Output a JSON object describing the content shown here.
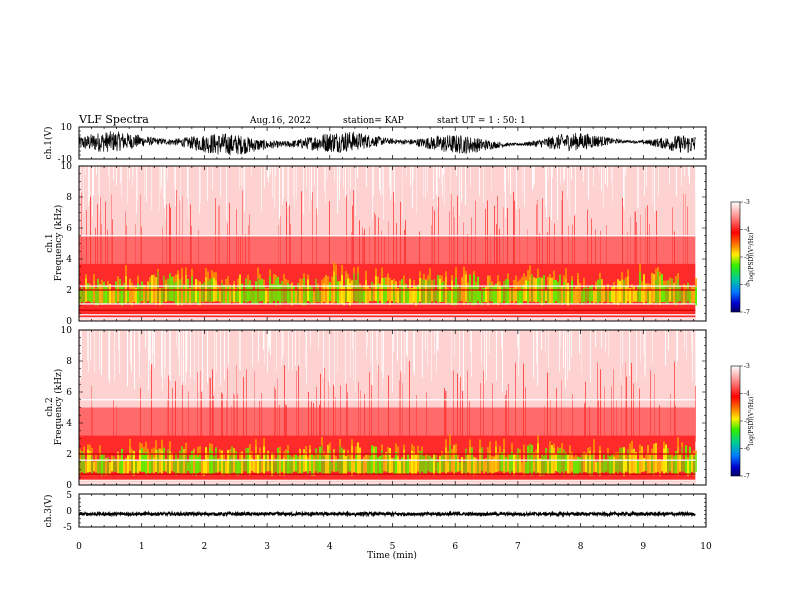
{
  "header": {
    "title": "VLF Spectra",
    "date": "Aug.16, 2022",
    "station": "station= KAP",
    "start_time": "start  UT =   1 : 50: 1"
  },
  "chart_data": [
    {
      "type": "line",
      "panel": "ch1-waveform",
      "ylabel": "ch.1(V)",
      "ylim": [
        -10,
        10
      ],
      "ytick_labels": [
        "10",
        "-10"
      ],
      "xlim": [
        0,
        10
      ],
      "x_extent": [
        0,
        9.83
      ],
      "series_color": "#000000",
      "description_values": {
        "band_min": -7,
        "band_max": 7
      }
    },
    {
      "type": "heatmap",
      "panel": "ch1-spectrogram",
      "ylabel": "ch.1\nFrequency (kHz)",
      "ylim": [
        0,
        10
      ],
      "ytick_labels": [
        "0",
        "2",
        "4",
        "6",
        "8",
        "10"
      ],
      "xlim": [
        0,
        10
      ],
      "x_extent": [
        0,
        9.83
      ],
      "colorbar": {
        "label": "log(PSD)(V²/Hz)",
        "range": [
          -7,
          -3
        ],
        "tick_labels": [
          "-3",
          "-4",
          "-5",
          "-6",
          "-7"
        ]
      },
      "bands_khz": {
        "green_low": 1.0,
        "green_high": 3.3,
        "red_top": 5.5
      },
      "line_khz": [
        0.4,
        0.7,
        1.1,
        2.0,
        2.25,
        5.5
      ]
    },
    {
      "type": "heatmap",
      "panel": "ch2-spectrogram",
      "ylabel": "ch.2\nFrequency (kHz)",
      "ylim": [
        0,
        10
      ],
      "ytick_labels": [
        "0",
        "2",
        "4",
        "6",
        "8",
        "10"
      ],
      "xlim": [
        0,
        10
      ],
      "x_extent": [
        0,
        9.83
      ],
      "colorbar": {
        "label": "log(PSD)(V²/Hz)",
        "range": [
          -7,
          -3
        ],
        "tick_labels": [
          "-3",
          "-4",
          "-5",
          "-6",
          "-7"
        ]
      },
      "bands_khz": {
        "green_low": 0.6,
        "green_high": 2.8,
        "red_top": 5.0
      },
      "line_khz": [
        0.3,
        0.7,
        1.6,
        2.0,
        5.5
      ]
    },
    {
      "type": "line",
      "panel": "ch3-waveform",
      "ylabel": "ch.3(V)",
      "ylim": [
        -5,
        5
      ],
      "ytick_labels": [
        "5",
        "0",
        "-5"
      ],
      "xlim": [
        0,
        10
      ],
      "x_extent": [
        0,
        9.83
      ],
      "series_color": "#000000",
      "description_values": {
        "band_min": -1.5,
        "band_max": -0.6
      }
    }
  ],
  "xaxis": {
    "label": "Time (min)",
    "tick_labels": [
      "0",
      "1",
      "2",
      "3",
      "4",
      "5",
      "6",
      "7",
      "8",
      "9",
      "10"
    ]
  },
  "colors": {
    "red": "#ff2a2a",
    "pink": "#ffb0b0",
    "green": "#66ee00",
    "yellow": "#ffee00",
    "orange": "#ff9900"
  }
}
